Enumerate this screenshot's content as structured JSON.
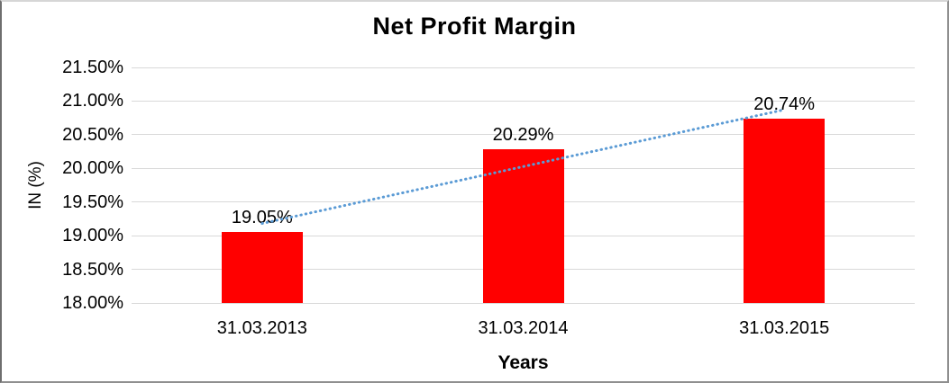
{
  "chart_data": {
    "type": "bar",
    "title": "Net Profit Margin",
    "xlabel": "Years",
    "ylabel": "IN (%)",
    "categories": [
      "31.03.2013",
      "31.03.2014",
      "31.03.2015"
    ],
    "values": [
      19.05,
      20.29,
      20.74
    ],
    "data_labels": [
      "19.05%",
      "20.29%",
      "20.74%"
    ],
    "ylim": [
      18.0,
      21.5
    ],
    "ytick_step": 0.5,
    "ytick_labels": [
      "21.50%",
      "21.00%",
      "20.50%",
      "20.00%",
      "19.50%",
      "19.00%",
      "18.50%",
      "18.00%"
    ],
    "grid": true,
    "legend": "none",
    "bar_color": "#FF0000",
    "gridline_color": "#D9D9D9",
    "text_color": "#000000",
    "trendline": {
      "type": "linear",
      "style": "dotted",
      "color": "#5B9BD5"
    }
  }
}
